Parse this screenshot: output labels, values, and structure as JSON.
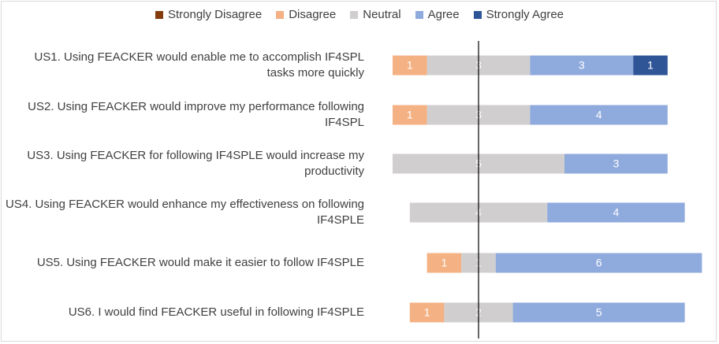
{
  "chart_data": {
    "type": "diverging_bar",
    "categories": [
      "US1. Using FEACKER would enable me to accomplish IF4SPL tasks more quickly",
      "US2. Using FEACKER would improve my performance following IF4SPL",
      "US3. Using FEACKER for following IF4SPLE would increase my productivity",
      "US4. Using FEACKER would enhance my effectiveness on following IF4SPLE",
      "US5. Using FEACKER would make it easier to follow IF4SPLE",
      "US6. I would find FEACKER useful in following IF4SPLE"
    ],
    "series": [
      {
        "name": "Strongly Disagree",
        "color": "#843c0c",
        "values": [
          0,
          0,
          0,
          0,
          0,
          0
        ]
      },
      {
        "name": "Disagree",
        "color": "#f4b183",
        "values": [
          1,
          1,
          0,
          0,
          1,
          1
        ]
      },
      {
        "name": "Neutral",
        "color": "#d0cece",
        "values": [
          3,
          3,
          5,
          4,
          1,
          2
        ]
      },
      {
        "name": "Agree",
        "color": "#8faadc",
        "values": [
          3,
          4,
          3,
          4,
          6,
          5
        ]
      },
      {
        "name": "Strongly Agree",
        "color": "#2f5597",
        "values": [
          1,
          0,
          0,
          0,
          0,
          0
        ]
      }
    ],
    "legend": "top"
  }
}
